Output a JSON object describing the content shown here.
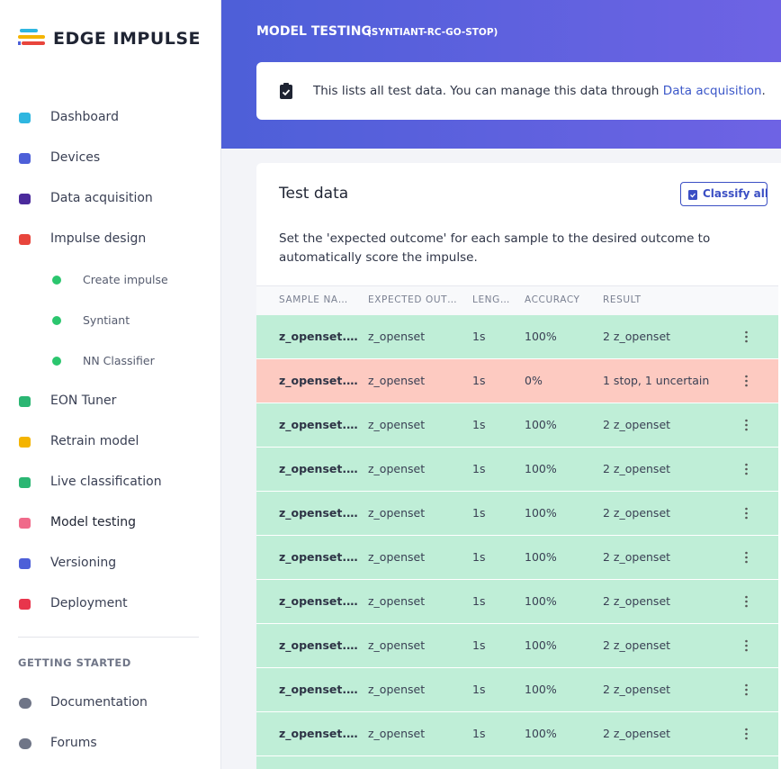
{
  "sidebar": {
    "brand": "EDGE IMPULSE",
    "nav": [
      {
        "label": "Dashboard"
      },
      {
        "label": "Devices"
      },
      {
        "label": "Data acquisition"
      },
      {
        "label": "Impulse design",
        "children": [
          "Create impulse",
          "Syntiant",
          "NN Classifier"
        ]
      },
      {
        "label": "EON Tuner"
      },
      {
        "label": "Retrain model"
      },
      {
        "label": "Live classification"
      },
      {
        "label": "Model testing"
      },
      {
        "label": "Versioning"
      },
      {
        "label": "Deployment"
      }
    ],
    "section": "GETTING STARTED",
    "links": [
      "Documentation",
      "Forums"
    ]
  },
  "header": {
    "title": "MODEL TESTING",
    "project": "(SYNTIANT-RC-GO-STOP)"
  },
  "notice": {
    "text": "This lists all test data. You can manage this data through ",
    "link": "Data acquisition",
    "end": "."
  },
  "panel": {
    "title": "Test data",
    "button": "Classify all",
    "description": "Set the 'expected outcome' for each sample to the desired outcome to automatically score the impulse."
  },
  "table": {
    "columns": [
      "SAMPLE NA…",
      "EXPECTED OUT…",
      "LENG…",
      "ACCURACY",
      "RESULT"
    ],
    "rows": [
      {
        "cells": [
          "z_openset.…",
          "z_openset",
          "1s",
          "100%",
          "2 z_openset"
        ],
        "color": "#bfeed7"
      },
      {
        "cells": [
          "z_openset.…",
          "z_openset",
          "1s",
          "0%",
          "1 stop, 1 uncertain"
        ],
        "color": "#fdcac1"
      },
      {
        "cells": [
          "z_openset.…",
          "z_openset",
          "1s",
          "100%",
          "2 z_openset"
        ],
        "color": "#bfeed7"
      },
      {
        "cells": [
          "z_openset.…",
          "z_openset",
          "1s",
          "100%",
          "2 z_openset"
        ],
        "color": "#bfeed7"
      },
      {
        "cells": [
          "z_openset.…",
          "z_openset",
          "1s",
          "100%",
          "2 z_openset"
        ],
        "color": "#bfeed7"
      },
      {
        "cells": [
          "z_openset.…",
          "z_openset",
          "1s",
          "100%",
          "2 z_openset"
        ],
        "color": "#bfeed7"
      },
      {
        "cells": [
          "z_openset.…",
          "z_openset",
          "1s",
          "100%",
          "2 z_openset"
        ],
        "color": "#bfeed7"
      },
      {
        "cells": [
          "z_openset.…",
          "z_openset",
          "1s",
          "100%",
          "2 z_openset"
        ],
        "color": "#bfeed7"
      },
      {
        "cells": [
          "z_openset.…",
          "z_openset",
          "1s",
          "100%",
          "2 z_openset"
        ],
        "color": "#bfeed7"
      },
      {
        "cells": [
          "z_openset.…",
          "z_openset",
          "1s",
          "100%",
          "2 z_openset"
        ],
        "color": "#bfeed7"
      }
    ]
  }
}
